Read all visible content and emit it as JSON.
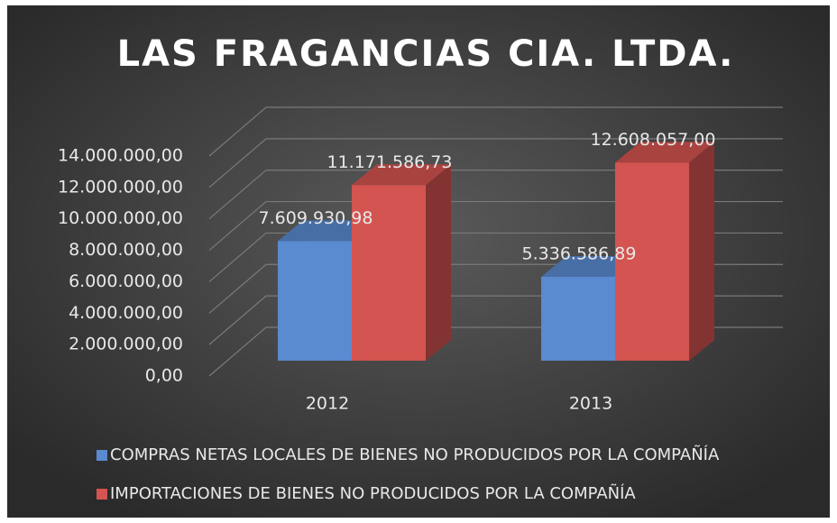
{
  "chart_data": {
    "type": "bar3d",
    "title": "LAS FRAGANCIAS CIA. LTDA.",
    "categories": [
      "2012",
      "2013"
    ],
    "series": [
      {
        "name": "COMPRAS NETAS LOCALES DE BIENES NO PRODUCIDOS POR LA COMPAÑÍA",
        "color": "#5a8ad0",
        "values": [
          7609930.98,
          5336586.89
        ],
        "value_labels": [
          "7.609.930,98",
          "5.336.586,89"
        ]
      },
      {
        "name": "IMPORTACIONES DE BIENES NO PRODUCIDOS POR LA COMPAÑÍA",
        "color": "#d35450",
        "values": [
          11171586.73,
          12608057.0
        ],
        "value_labels": [
          "11.171.586,73",
          "12.608.057,00"
        ]
      }
    ],
    "ylim": [
      0,
      14000000
    ],
    "yticks": [
      {
        "value": 0,
        "label": "0,00"
      },
      {
        "value": 2000000,
        "label": "2.000.000,00"
      },
      {
        "value": 4000000,
        "label": "4.000.000,00"
      },
      {
        "value": 6000000,
        "label": "6.000.000,00"
      },
      {
        "value": 8000000,
        "label": "8.000.000,00"
      },
      {
        "value": 10000000,
        "label": "10.000.000,00"
      },
      {
        "value": 12000000,
        "label": "12.000.000,00"
      },
      {
        "value": 14000000,
        "label": "14.000.000,00"
      }
    ],
    "grid": true,
    "legend": "bottom"
  }
}
